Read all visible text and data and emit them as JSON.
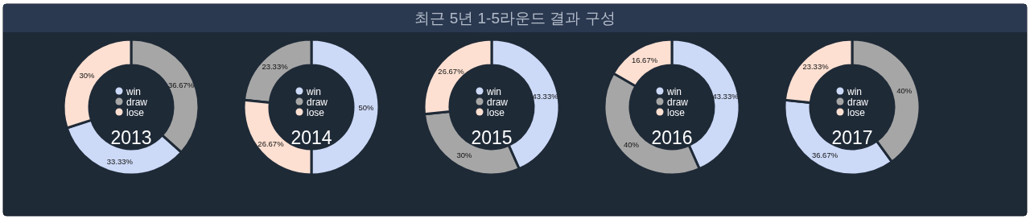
{
  "chart_data": [
    {
      "type": "donut",
      "title": "2013",
      "annotations": [
        "최근 5년 1-5라운드 결과 구성"
      ],
      "categories": [
        "win",
        "draw",
        "lose"
      ],
      "values": [
        33.33,
        36.67,
        30
      ],
      "colors": [
        "#ccd9f7",
        "#a6a6a6",
        "#fde0d2"
      ],
      "value_labels": [
        "33.33%",
        "36.67%",
        "30%"
      ],
      "legend": "center"
    },
    {
      "type": "donut",
      "title": "2014",
      "categories": [
        "win",
        "draw",
        "lose"
      ],
      "values": [
        50,
        23.33,
        26.67
      ],
      "colors": [
        "#ccd9f7",
        "#a6a6a6",
        "#fde0d2"
      ],
      "value_labels": [
        "50%",
        "23.33%",
        "26.67%"
      ],
      "legend": "center"
    },
    {
      "type": "donut",
      "title": "2015",
      "categories": [
        "win",
        "draw",
        "lose"
      ],
      "values": [
        43.33,
        30,
        26.67
      ],
      "colors": [
        "#ccd9f7",
        "#a6a6a6",
        "#fde0d2"
      ],
      "value_labels": [
        "43.33%",
        "30%",
        "26.67%"
      ],
      "legend": "center"
    },
    {
      "type": "donut",
      "title": "2016",
      "categories": [
        "win",
        "draw",
        "lose"
      ],
      "values": [
        43.33,
        40,
        16.67
      ],
      "colors": [
        "#ccd9f7",
        "#a6a6a6",
        "#fde0d2"
      ],
      "value_labels": [
        "43.33%",
        "40%",
        "16.67%"
      ],
      "legend": "center"
    },
    {
      "type": "donut",
      "title": "2017",
      "categories": [
        "win",
        "draw",
        "lose"
      ],
      "values": [
        36.67,
        40,
        23.33
      ],
      "colors": [
        "#ccd9f7",
        "#a6a6a6",
        "#fde0d2"
      ],
      "value_labels": [
        "36.67%",
        "40%",
        "23.33%"
      ],
      "legend": "center"
    }
  ]
}
